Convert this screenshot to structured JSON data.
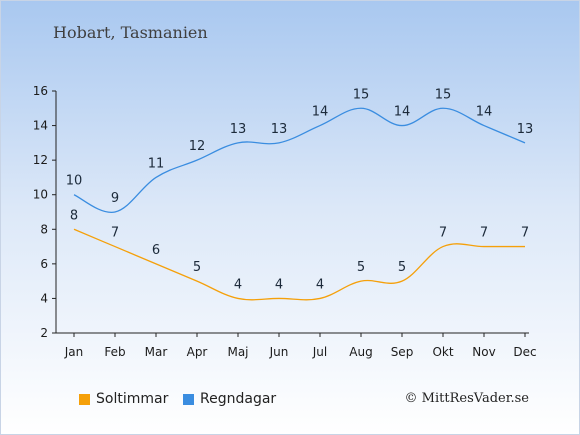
{
  "title": "Hobart, Tasmanien",
  "copyright": "© MittResVader.se",
  "colors": {
    "sun": "#f5a00a",
    "rain": "#3a8de0"
  },
  "chart_data": {
    "type": "line",
    "categories": [
      "Jan",
      "Feb",
      "Mar",
      "Apr",
      "Maj",
      "Jun",
      "Jul",
      "Aug",
      "Sep",
      "Okt",
      "Nov",
      "Dec"
    ],
    "ylim": [
      2,
      16
    ],
    "yticks": [
      2,
      4,
      6,
      8,
      10,
      12,
      14,
      16
    ],
    "grid": false,
    "legend_position": "bottom-left",
    "series": [
      {
        "name": "Soltimmar",
        "color": "#f5a00a",
        "values": [
          8,
          7,
          6,
          5,
          4,
          4,
          4,
          5,
          5,
          7,
          7,
          7
        ]
      },
      {
        "name": "Regndagar",
        "color": "#3a8de0",
        "values": [
          10,
          9,
          11,
          12,
          13,
          13,
          14,
          15,
          14,
          15,
          14,
          13
        ]
      }
    ]
  }
}
